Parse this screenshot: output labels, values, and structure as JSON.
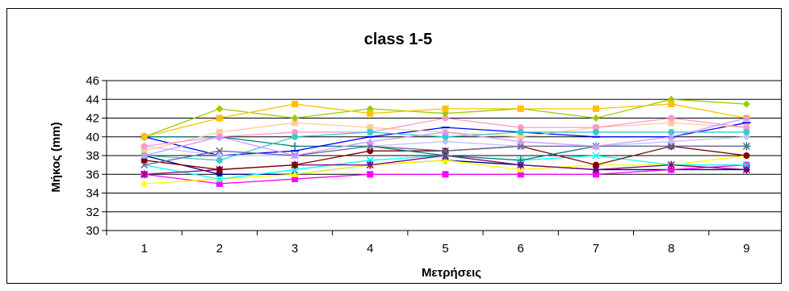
{
  "chart_data": {
    "type": "line",
    "title": "class 1-5",
    "xlabel": "Μετρήσεις",
    "ylabel": "Μήκος (mm)",
    "x": [
      1,
      2,
      3,
      4,
      5,
      6,
      7,
      8,
      9
    ],
    "ylim": [
      30,
      46
    ],
    "yticks": [
      30,
      32,
      34,
      36,
      38,
      40,
      42,
      44,
      46
    ],
    "grid": "horizontal",
    "legend": "none",
    "series": [
      {
        "color": "#000080",
        "marker": "diamond",
        "values": [
          38,
          36,
          36,
          37,
          37.5,
          37,
          36.5,
          36.5,
          36.5
        ]
      },
      {
        "color": "#ff00ff",
        "marker": "square",
        "values": [
          36,
          35,
          35.5,
          36,
          36,
          36,
          36,
          36.5,
          37
        ]
      },
      {
        "color": "#ffff00",
        "marker": "triangle",
        "values": [
          35,
          35.5,
          36,
          37,
          37.5,
          36.5,
          37,
          37,
          38
        ]
      },
      {
        "color": "#00ffff",
        "marker": "x",
        "values": [
          37,
          35.5,
          36.5,
          37.5,
          38,
          37.5,
          38,
          37,
          37
        ]
      },
      {
        "color": "#800080",
        "marker": "star",
        "values": [
          36,
          36.5,
          37,
          37,
          38,
          37,
          36.5,
          37,
          36.5
        ]
      },
      {
        "color": "#800000",
        "marker": "circle",
        "values": [
          37.5,
          36.5,
          37,
          38.5,
          38.5,
          39,
          37,
          39,
          38
        ]
      },
      {
        "color": "#008080",
        "marker": "plus",
        "values": [
          40,
          40,
          39,
          39,
          38,
          37.5,
          39,
          39,
          39
        ]
      },
      {
        "color": "#0000ff",
        "marker": "dash",
        "values": [
          40,
          38,
          38.5,
          40,
          41,
          40.5,
          40,
          40,
          41.5
        ]
      },
      {
        "color": "#c0c0ff",
        "marker": "diamond",
        "values": [
          39,
          38,
          38,
          39,
          39.5,
          39,
          39,
          39.5,
          40
        ]
      },
      {
        "color": "#ffcc99",
        "marker": "square",
        "values": [
          38.5,
          40.5,
          41.5,
          41,
          40.5,
          40,
          41,
          41.5,
          41
        ]
      },
      {
        "color": "#ff99cc",
        "marker": "circle",
        "values": [
          39,
          40,
          40.5,
          40.5,
          42,
          41,
          41,
          42,
          41
        ]
      },
      {
        "color": "#99cc00",
        "marker": "diamond",
        "values": [
          40,
          43,
          42,
          43,
          42.5,
          43,
          42,
          44,
          43.5
        ]
      },
      {
        "color": "#ffc000",
        "marker": "square",
        "values": [
          40,
          42,
          43.5,
          42.5,
          43,
          43,
          43,
          43.5,
          42
        ]
      },
      {
        "color": "#33cccc",
        "marker": "circle",
        "values": [
          38,
          37.5,
          40,
          40.5,
          40,
          40.5,
          40.5,
          40.5,
          40.5
        ]
      },
      {
        "color": "#666699",
        "marker": "x",
        "values": [
          37,
          38.5,
          38,
          39,
          38.5,
          39,
          39,
          39,
          39
        ]
      },
      {
        "color": "#cc99ff",
        "marker": "triangle",
        "values": [
          38,
          40,
          38,
          39.5,
          40.5,
          39.5,
          39,
          40,
          42
        ]
      }
    ]
  }
}
